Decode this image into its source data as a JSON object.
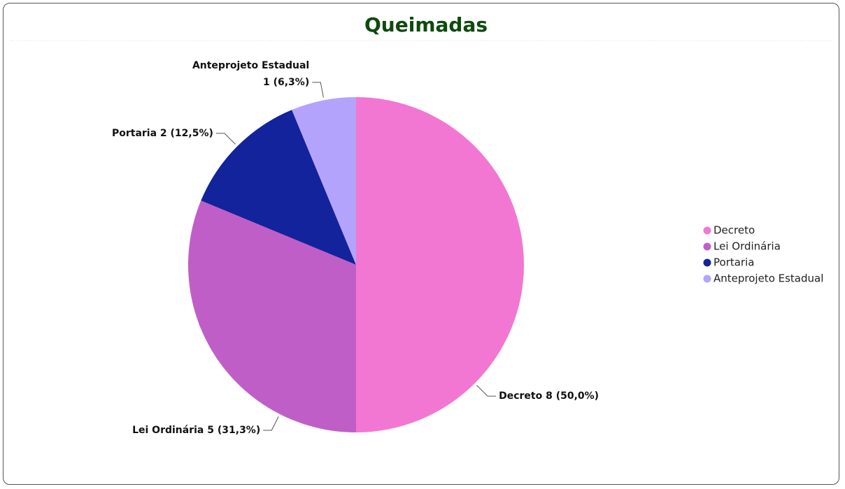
{
  "chart_data": {
    "type": "pie",
    "title": "Queimadas",
    "categories": [
      "Decreto",
      "Lei Ordinária",
      "Portaria",
      "Anteprojeto Estadual"
    ],
    "values": [
      8,
      5,
      2,
      1
    ],
    "value_labels": [
      "8 (50,0%)",
      "5 (31,3%)",
      "2 (12,5%)",
      "1 (6,3%)"
    ],
    "colors": [
      "#f277d2",
      "#c05ec8",
      "#13239c",
      "#b4a3fc"
    ],
    "legend": "right"
  }
}
